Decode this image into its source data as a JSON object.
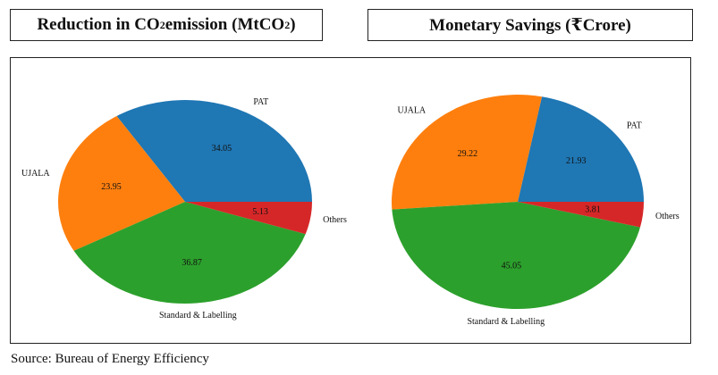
{
  "titles": {
    "left_prefix": "Reduction in CO",
    "left_sub": "2",
    "left_mid": " emission (MtCO",
    "left_sub2": "2",
    "left_suffix": ")",
    "right": "Monetary Savings (₹Crore)"
  },
  "source": "Source: Bureau of Energy Efficiency",
  "colors": {
    "PAT": "#1f77b4",
    "UJALA": "#ff7f0e",
    "Standard & Labelling": "#2ca02c",
    "Others": "#d62728"
  },
  "chart_data": [
    {
      "type": "pie",
      "title": "Reduction in CO2 emission (MtCO2)",
      "categories": [
        "PAT",
        "UJALA",
        "Standard & Labelling",
        "Others"
      ],
      "values": [
        34.05,
        23.95,
        36.87,
        5.13
      ]
    },
    {
      "type": "pie",
      "title": "Monetary Savings (₹Crore)",
      "categories": [
        "PAT",
        "UJALA",
        "Standard & Labelling",
        "Others"
      ],
      "values": [
        21.93,
        29.22,
        45.05,
        3.81
      ]
    }
  ]
}
